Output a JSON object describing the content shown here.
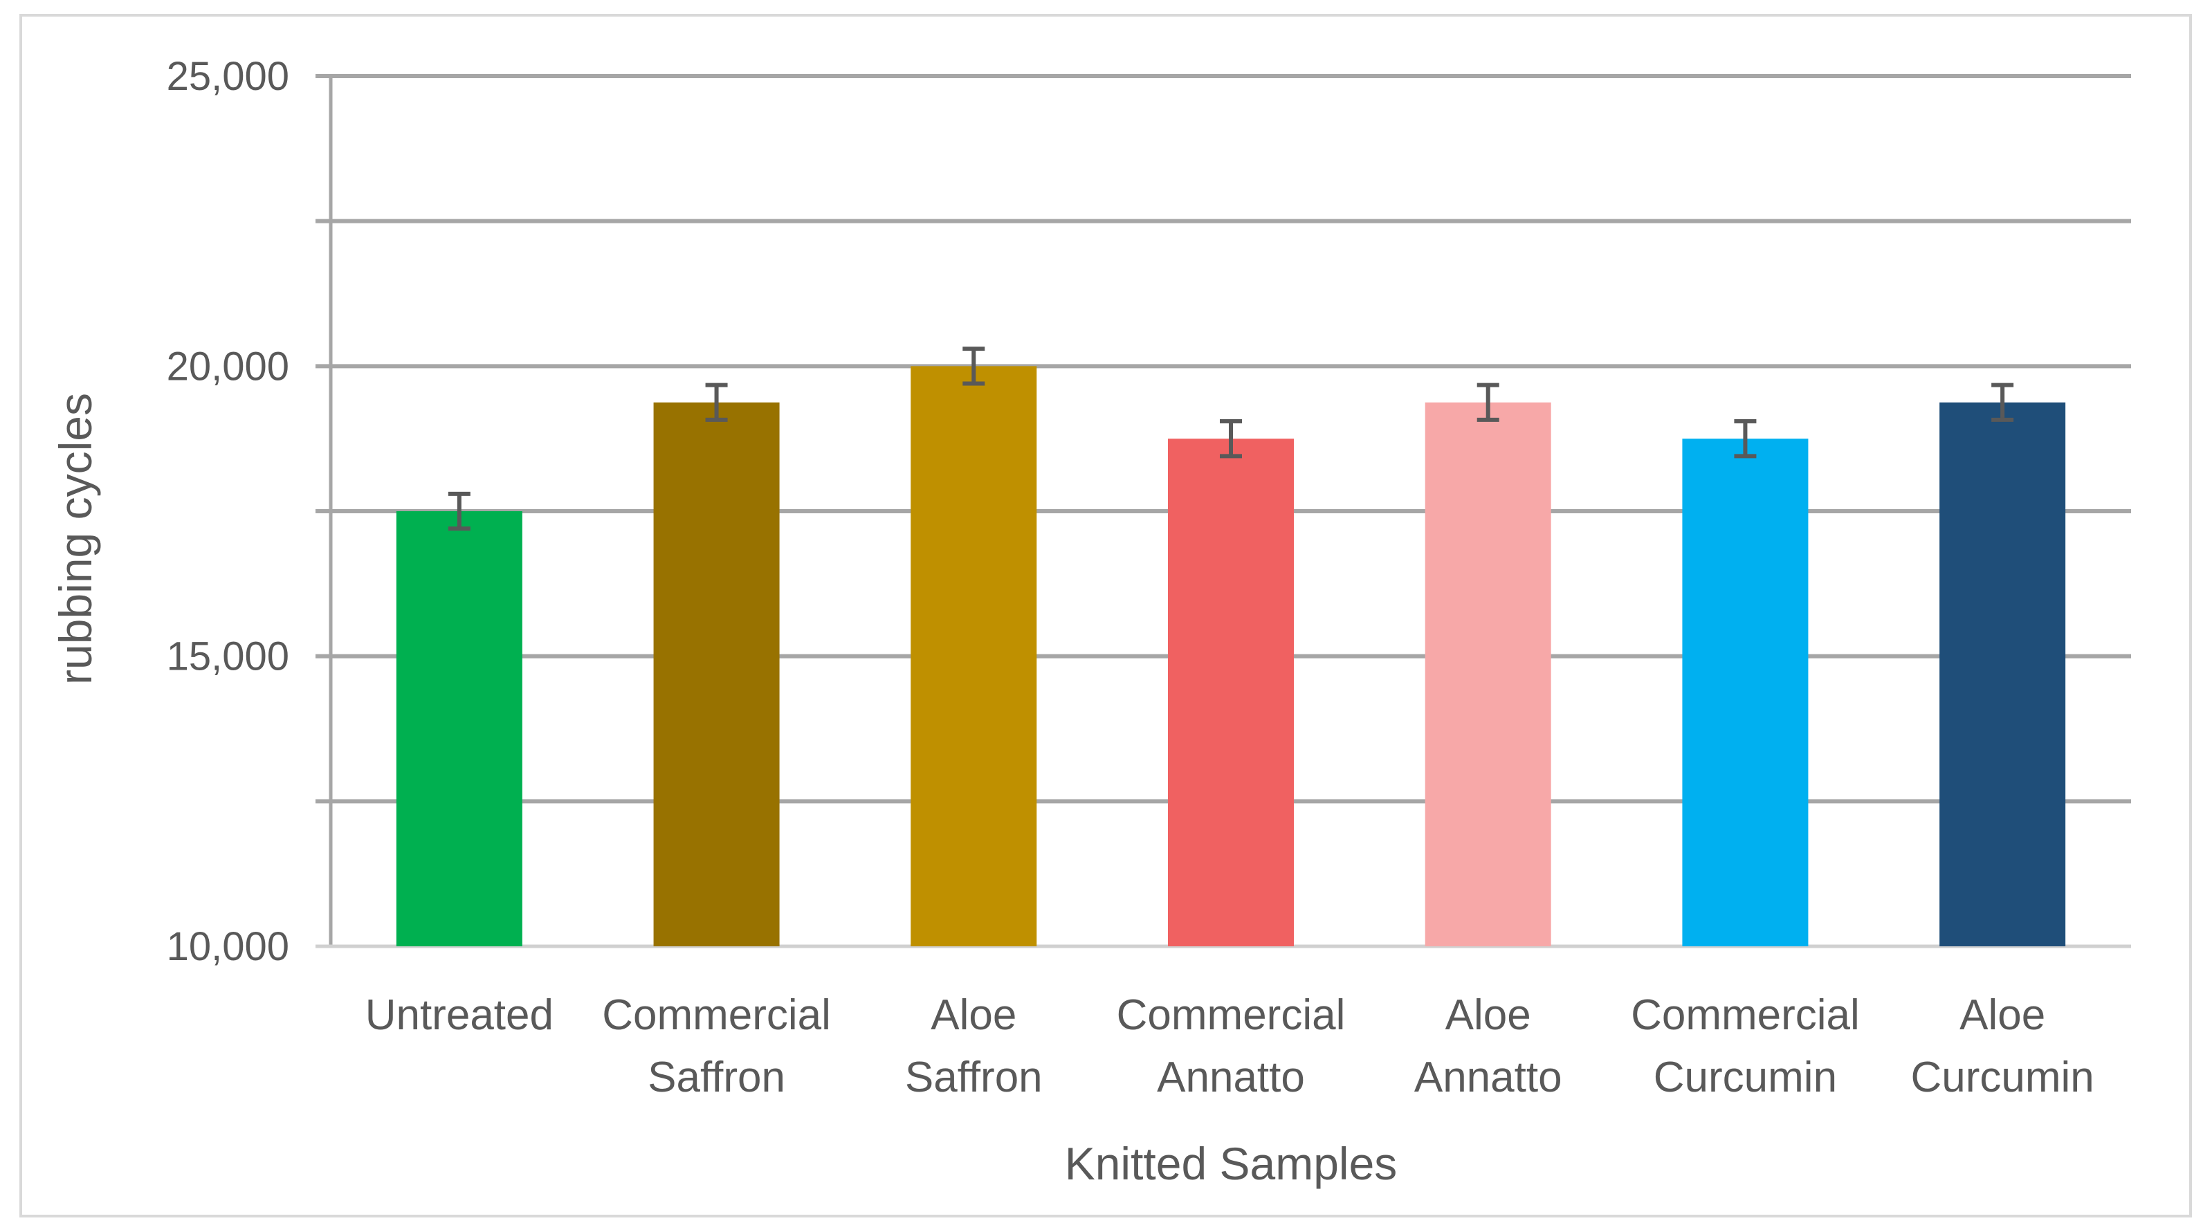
{
  "chart_data": {
    "type": "bar",
    "title": "",
    "xlabel": "Knitted Samples",
    "ylabel": "rubbing cycles",
    "ylim": [
      10000,
      25000
    ],
    "yticks": [
      10000,
      12500,
      15000,
      17500,
      20000,
      22500,
      25000
    ],
    "ytick_labels": [
      "10,000",
      "",
      "15,000",
      "",
      "20,000",
      "",
      "25,000"
    ],
    "grid": true,
    "legend": "none",
    "categories": [
      [
        "Untreated"
      ],
      [
        "Commercial",
        "Saffron"
      ],
      [
        "Aloe",
        "Saffron"
      ],
      [
        "Commercial",
        "Annatto"
      ],
      [
        "Aloe",
        "Annatto"
      ],
      [
        "Commercial",
        "Curcumin"
      ],
      [
        "Aloe",
        "Curcumin"
      ]
    ],
    "values": [
      17500,
      19375,
      20000,
      18750,
      19375,
      18750,
      19375
    ],
    "error": [
      300,
      300,
      300,
      300,
      300,
      300,
      300
    ],
    "colors": [
      "#00b050",
      "#987200",
      "#bf9000",
      "#f06161",
      "#f7a8a8",
      "#00b0f0",
      "#1f4e79"
    ]
  }
}
